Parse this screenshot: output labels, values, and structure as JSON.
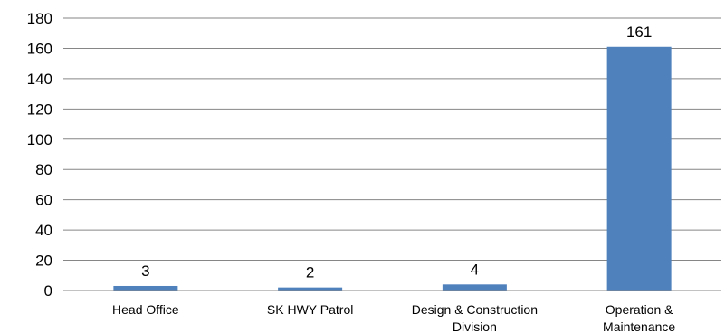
{
  "chart_data": {
    "type": "bar",
    "categories": [
      [
        "Head Office"
      ],
      [
        "SK HWY Patrol"
      ],
      [
        "Design & Construction",
        "Division"
      ],
      [
        "Operation &",
        "Maintenance"
      ]
    ],
    "values": [
      3,
      2,
      4,
      161
    ],
    "data_labels": [
      "3",
      "2",
      "4",
      "161"
    ],
    "ylim": [
      0,
      180
    ],
    "yticks": [
      "0",
      "20",
      "40",
      "60",
      "80",
      "100",
      "120",
      "140",
      "160",
      "180"
    ],
    "grid": true,
    "legend": "none",
    "title": "",
    "xlabel": "",
    "ylabel": "",
    "colors": {
      "bar": "#4F81BD",
      "grid": "#868686"
    }
  }
}
